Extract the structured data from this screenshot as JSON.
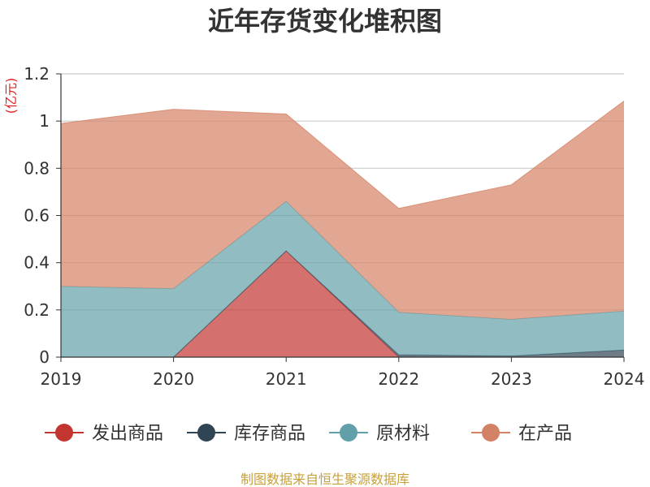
{
  "chart_data": {
    "type": "area",
    "stacked": true,
    "title": "近年存货变化堆积图",
    "ylabel": "(亿元)",
    "xlabel": "",
    "categories": [
      "2019",
      "2020",
      "2021",
      "2022",
      "2023",
      "2024"
    ],
    "ylim": [
      0,
      1.2
    ],
    "yticks": [
      0,
      0.2,
      0.4,
      0.6,
      0.8,
      1,
      1.2
    ],
    "ytick_labels": [
      "0",
      "0.2",
      "0.4",
      "0.6",
      "0.8",
      "1",
      "1.2"
    ],
    "grid": true,
    "legend_position": "bottom",
    "series": [
      {
        "name": "发出商品",
        "color": "#c23531",
        "values": [
          0,
          0,
          0.45,
          0,
          0,
          0
        ]
      },
      {
        "name": "库存商品",
        "color": "#2f4554",
        "values": [
          0,
          0,
          0,
          0.01,
          0.005,
          0.03
        ]
      },
      {
        "name": "原材料",
        "color": "#61a0a8",
        "values": [
          0.3,
          0.29,
          0.21,
          0.18,
          0.155,
          0.165
        ]
      },
      {
        "name": "在产品",
        "color": "#d48265",
        "values": [
          0.69,
          0.76,
          0.37,
          0.44,
          0.57,
          0.89
        ]
      }
    ],
    "source_note": "制图数据来自恒生聚源数据库"
  }
}
